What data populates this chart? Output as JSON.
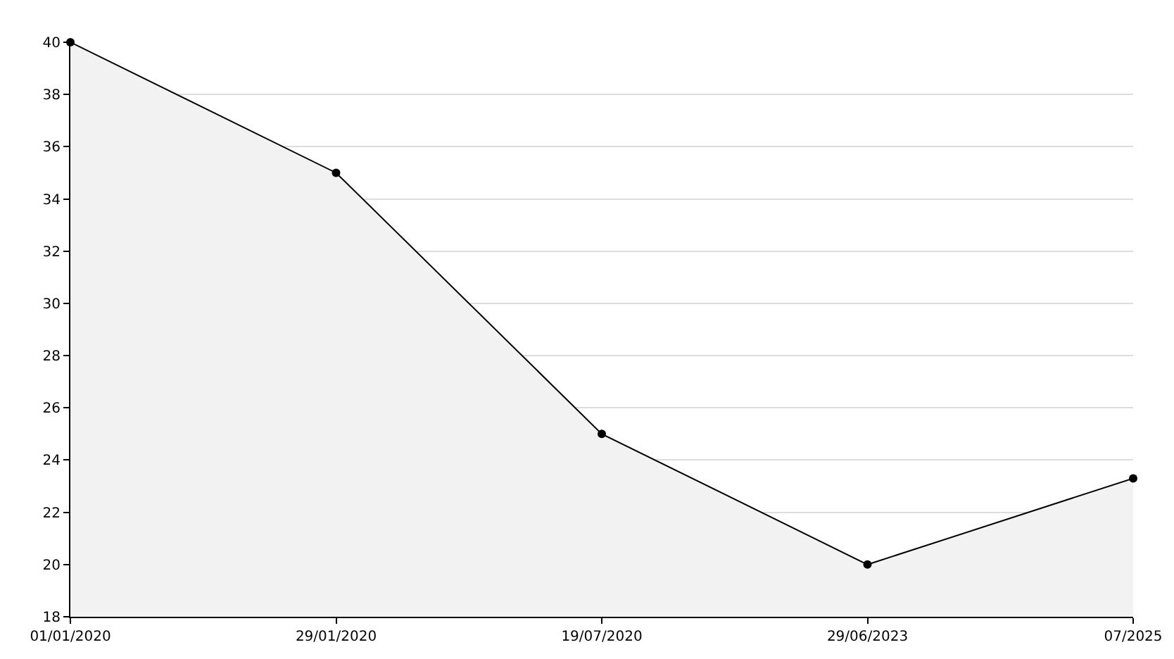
{
  "chart_data": {
    "type": "area",
    "categories": [
      "01/01/2020",
      "29/01/2020",
      "19/07/2020",
      "29/06/2023",
      "07/2025"
    ],
    "series": [
      {
        "color": "#000000",
        "values": [
          40,
          35,
          25,
          20,
          23.3
        ]
      }
    ],
    "ylim": [
      18,
      40
    ],
    "yticks": [
      18,
      20,
      22,
      24,
      26,
      28,
      30,
      32,
      34,
      36,
      38,
      40
    ],
    "grid": "y",
    "marker": "circle",
    "line_style": "solid"
  }
}
